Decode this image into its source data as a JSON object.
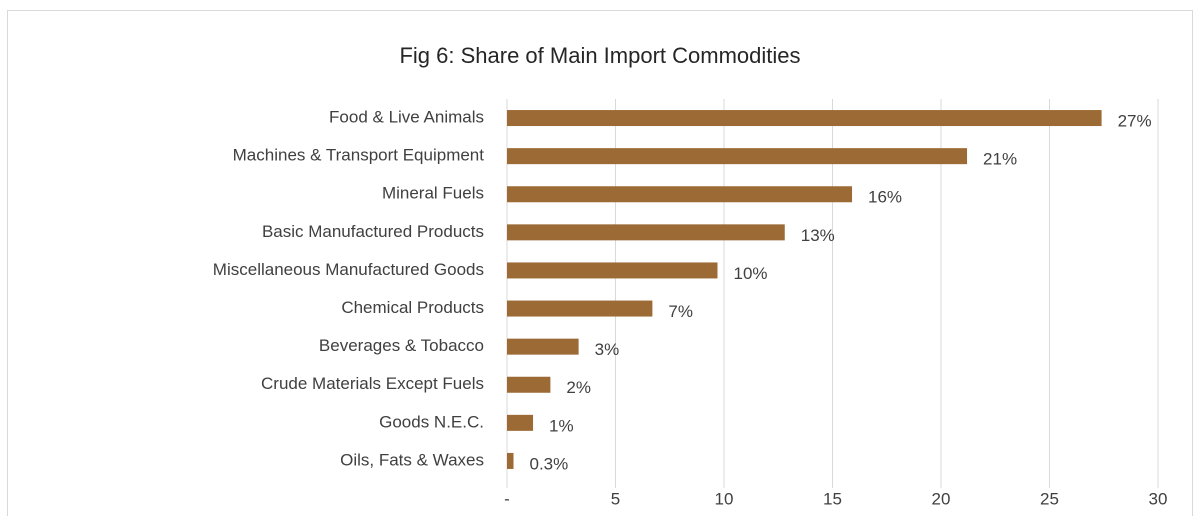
{
  "chart_data": {
    "type": "barh",
    "title": "Fig 6: Share of Main Import Commodities",
    "categories": [
      "Food & Live Animals",
      "Machines & Transport Equipment",
      "Mineral Fuels",
      "Basic Manufactured Products",
      "Miscellaneous Manufactured Goods",
      "Chemical Products",
      "Beverages & Tobacco",
      "Crude Materials Except Fuels",
      "Goods N.E.C.",
      "Oils, Fats & Waxes"
    ],
    "values": [
      27.4,
      21.2,
      15.9,
      12.8,
      9.7,
      6.7,
      3.3,
      2.0,
      1.2,
      0.3
    ],
    "value_labels": [
      "27%",
      "21%",
      "16%",
      "13%",
      "10%",
      "7%",
      "3%",
      "2%",
      "1%",
      "0.3%"
    ],
    "color": "#9c6a35",
    "xlim": [
      0,
      30
    ],
    "xticks": [
      {
        "value": 0,
        "label": "-"
      },
      5,
      10,
      15,
      20,
      25,
      30
    ],
    "grid": true
  }
}
